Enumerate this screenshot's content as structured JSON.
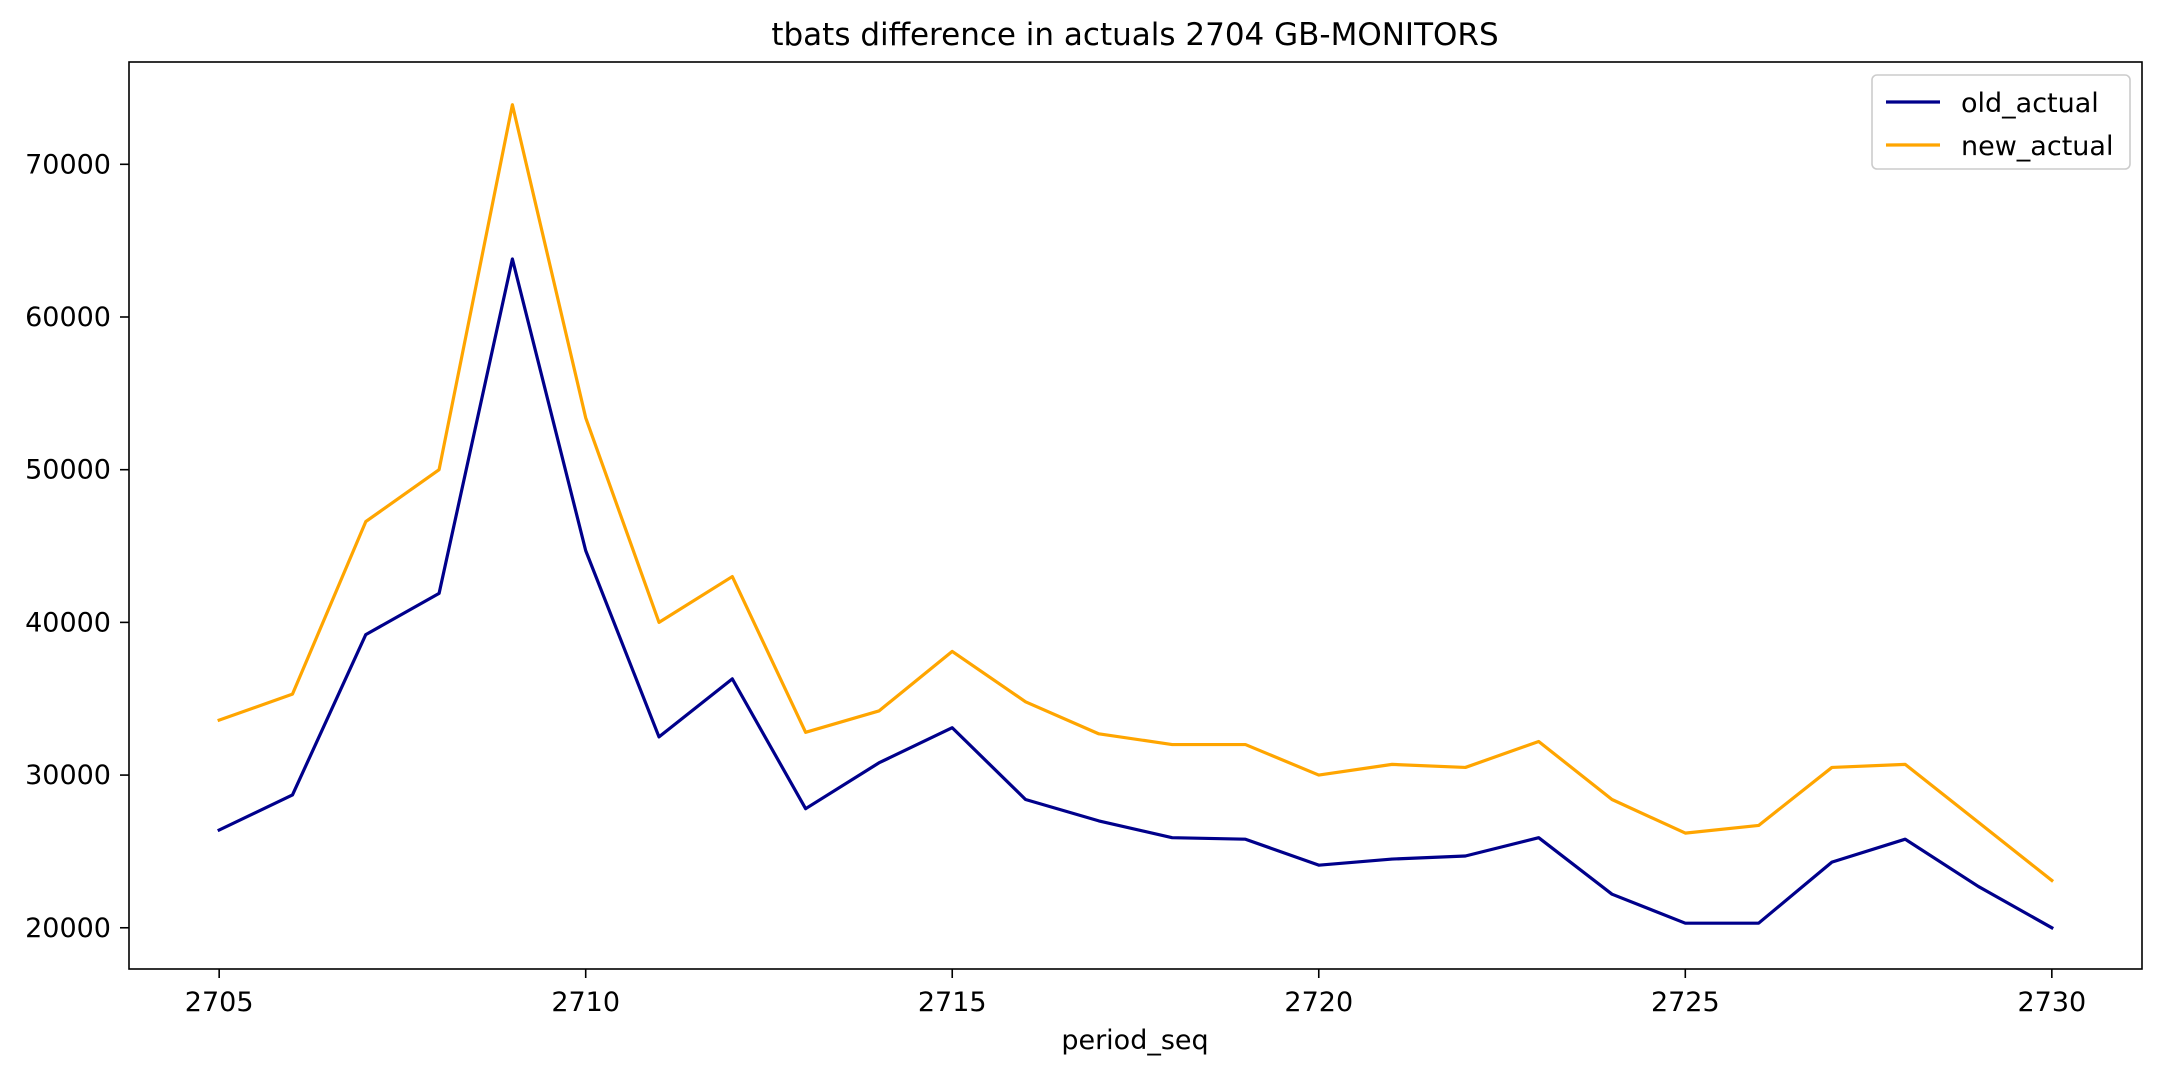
{
  "chart_data": {
    "type": "line",
    "title": "tbats difference in actuals 2704 GB-MONITORS",
    "xlabel": "period_seq",
    "ylabel": "",
    "x": [
      2705,
      2706,
      2707,
      2708,
      2709,
      2710,
      2711,
      2712,
      2713,
      2714,
      2715,
      2716,
      2717,
      2718,
      2719,
      2720,
      2721,
      2722,
      2723,
      2724,
      2725,
      2726,
      2727,
      2728,
      2729,
      2730
    ],
    "xlim": [
      2703.77,
      2731.23
    ],
    "ylim": [
      17300,
      76700
    ],
    "xticks": [
      2705,
      2710,
      2715,
      2720,
      2725,
      2730
    ],
    "yticks": [
      20000,
      30000,
      40000,
      50000,
      60000,
      70000
    ],
    "grid": false,
    "legend_position": "upper right",
    "series": [
      {
        "name": "old_actual",
        "color": "#00008b",
        "values": [
          26400,
          28700,
          39200,
          41900,
          63800,
          44700,
          32500,
          36300,
          27800,
          30800,
          33100,
          28400,
          27000,
          25900,
          25800,
          24100,
          24500,
          24700,
          25900,
          22200,
          20300,
          20300,
          24300,
          25800,
          22700,
          20000
        ]
      },
      {
        "name": "new_actual",
        "color": "#ffa500",
        "values": [
          33600,
          35300,
          46600,
          50000,
          73900,
          53400,
          40000,
          43000,
          32800,
          34200,
          38100,
          34800,
          32700,
          32000,
          32000,
          30000,
          30700,
          30500,
          32200,
          28400,
          26200,
          26700,
          30500,
          30700,
          26900,
          23100
        ]
      }
    ]
  }
}
